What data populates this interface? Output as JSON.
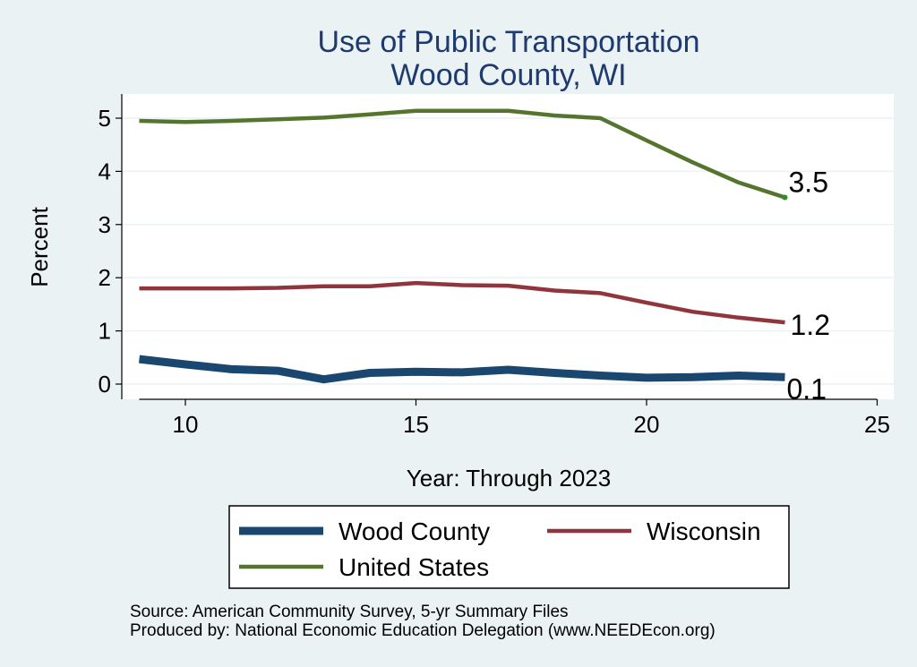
{
  "chart_data": {
    "type": "line",
    "title": [
      "Use of Public Transportation",
      "Wood County, WI"
    ],
    "xlabel": "Year: Through 2023",
    "ylabel": "Percent",
    "xlim": [
      9,
      25
    ],
    "ylim": [
      0,
      5
    ],
    "xticks": [
      10,
      15,
      20,
      25
    ],
    "yticks": [
      0,
      1,
      2,
      3,
      4,
      5
    ],
    "grid": true,
    "legend_position": "bottom",
    "series": [
      {
        "name": "Wood County",
        "color": "#1a476f",
        "x": [
          9,
          10,
          11,
          12,
          13,
          14,
          15,
          16,
          17,
          18,
          19,
          20,
          21,
          22,
          23
        ],
        "values": [
          0.47,
          0.37,
          0.28,
          0.25,
          0.09,
          0.21,
          0.23,
          0.22,
          0.27,
          0.21,
          0.16,
          0.12,
          0.13,
          0.16,
          0.13
        ],
        "end_label": "0.1"
      },
      {
        "name": "Wisconsin",
        "color": "#90353b",
        "x": [
          9,
          10,
          11,
          12,
          13,
          14,
          15,
          16,
          17,
          18,
          19,
          20,
          21,
          22,
          23
        ],
        "values": [
          1.8,
          1.8,
          1.8,
          1.81,
          1.84,
          1.84,
          1.9,
          1.86,
          1.85,
          1.76,
          1.71,
          1.53,
          1.36,
          1.25,
          1.16
        ],
        "end_label": "1.2"
      },
      {
        "name": "United States",
        "color": "#55752f",
        "x": [
          9,
          10,
          11,
          12,
          13,
          14,
          15,
          16,
          17,
          18,
          19,
          20,
          21,
          22,
          23
        ],
        "values": [
          4.95,
          4.93,
          4.95,
          4.98,
          5.01,
          5.07,
          5.14,
          5.14,
          5.14,
          5.05,
          5.0,
          4.58,
          4.17,
          3.79,
          3.51
        ],
        "end_label": "3.5"
      }
    ]
  },
  "notes": [
    "Source: American Community Survey, 5-yr Summary Files",
    "Produced by: National Economic Education Delegation (www.NEEDEcon.org)"
  ]
}
